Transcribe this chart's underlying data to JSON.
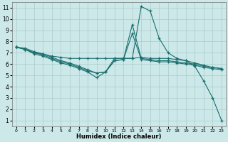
{
  "xlabel": "Humidex (Indice chaleur)",
  "background_color": "#cce8e8",
  "grid_color": "#aacccc",
  "line_color": "#1a6e6e",
  "xlim": [
    -0.5,
    23.5
  ],
  "ylim": [
    0.5,
    11.5
  ],
  "xticks": [
    0,
    1,
    2,
    3,
    4,
    5,
    6,
    7,
    8,
    9,
    10,
    11,
    12,
    13,
    14,
    15,
    16,
    17,
    18,
    19,
    20,
    21,
    22,
    23
  ],
  "yticks": [
    1,
    2,
    3,
    4,
    5,
    6,
    7,
    8,
    9,
    10,
    11
  ],
  "lines": [
    {
      "x": [
        0,
        1,
        2,
        3,
        4,
        5,
        6,
        7,
        8,
        9,
        10,
        11,
        12,
        13,
        14,
        15,
        16,
        17,
        18,
        19,
        20,
        21,
        22,
        23
      ],
      "y": [
        7.5,
        7.4,
        7.1,
        6.9,
        6.6,
        6.3,
        6.1,
        5.8,
        5.5,
        5.2,
        5.3,
        6.5,
        6.5,
        6.5,
        11.1,
        10.7,
        8.3,
        7.0,
        6.5,
        6.3,
        5.8,
        4.5,
        3.0,
        1.0
      ]
    },
    {
      "x": [
        0,
        1,
        2,
        3,
        4,
        5,
        6,
        7,
        8,
        9,
        10,
        11,
        12,
        13,
        14,
        15,
        16,
        17,
        18,
        19,
        20,
        21,
        22,
        23
      ],
      "y": [
        7.5,
        7.3,
        7.0,
        6.9,
        6.7,
        6.6,
        6.5,
        6.5,
        6.5,
        6.5,
        6.5,
        6.5,
        6.5,
        6.5,
        6.6,
        6.5,
        6.5,
        6.5,
        6.4,
        6.3,
        6.1,
        5.9,
        5.7,
        5.6
      ]
    },
    {
      "x": [
        0,
        1,
        2,
        3,
        4,
        5,
        6,
        7,
        8,
        9,
        10,
        11,
        12,
        13,
        14,
        15,
        16,
        17,
        18,
        19,
        20,
        21,
        22,
        23
      ],
      "y": [
        7.5,
        7.3,
        7.0,
        6.8,
        6.5,
        6.2,
        6.0,
        5.7,
        5.4,
        5.2,
        5.3,
        6.3,
        6.4,
        9.5,
        6.5,
        6.4,
        6.3,
        6.3,
        6.2,
        6.1,
        6.0,
        5.8,
        5.7,
        5.6
      ]
    },
    {
      "x": [
        0,
        1,
        2,
        3,
        4,
        5,
        6,
        7,
        8,
        9,
        10,
        11,
        12,
        13,
        14,
        15,
        16,
        17,
        18,
        19,
        20,
        21,
        22,
        23
      ],
      "y": [
        7.5,
        7.3,
        6.9,
        6.7,
        6.4,
        6.1,
        5.9,
        5.6,
        5.3,
        4.8,
        5.3,
        6.3,
        6.4,
        8.7,
        6.4,
        6.3,
        6.2,
        6.2,
        6.1,
        6.0,
        5.9,
        5.7,
        5.6,
        5.5
      ]
    }
  ]
}
